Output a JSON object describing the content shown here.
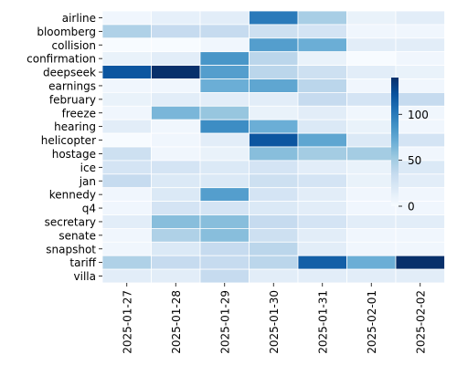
{
  "chart_data": {
    "type": "heatmap",
    "title": "",
    "xlabel": "",
    "ylabel": "",
    "columns": [
      "2025-01-27",
      "2025-01-28",
      "2025-01-29",
      "2025-01-30",
      "2025-01-31",
      "2025-02-01",
      "2025-02-02"
    ],
    "rows": [
      "airline",
      "bloomberg",
      "collision",
      "confirmation",
      "deepseek",
      "earnings",
      "february",
      "freeze",
      "hearing",
      "helicopter",
      "hostage",
      "ice",
      "jan",
      "kennedy",
      "q4",
      "secretary",
      "senate",
      "snapshot",
      "tariff",
      "villa"
    ],
    "values": [
      [
        5,
        12,
        15,
        100,
        48,
        10,
        15
      ],
      [
        45,
        35,
        35,
        30,
        25,
        5,
        5
      ],
      [
        0,
        0,
        5,
        80,
        70,
        15,
        15
      ],
      [
        10,
        15,
        85,
        40,
        10,
        0,
        5
      ],
      [
        120,
        140,
        80,
        40,
        30,
        15,
        10
      ],
      [
        5,
        5,
        70,
        75,
        40,
        5,
        5
      ],
      [
        10,
        15,
        15,
        15,
        35,
        25,
        35
      ],
      [
        5,
        65,
        55,
        10,
        15,
        5,
        5
      ],
      [
        15,
        5,
        90,
        70,
        20,
        10,
        5
      ],
      [
        0,
        5,
        15,
        120,
        75,
        20,
        25
      ],
      [
        30,
        5,
        10,
        60,
        50,
        50,
        5
      ],
      [
        25,
        25,
        20,
        25,
        15,
        10,
        20
      ],
      [
        35,
        20,
        20,
        30,
        25,
        10,
        15
      ],
      [
        5,
        20,
        80,
        25,
        15,
        5,
        5
      ],
      [
        5,
        25,
        25,
        20,
        15,
        5,
        5
      ],
      [
        15,
        60,
        60,
        35,
        25,
        15,
        15
      ],
      [
        5,
        45,
        60,
        30,
        15,
        5,
        5
      ],
      [
        5,
        20,
        35,
        40,
        15,
        5,
        5
      ],
      [
        45,
        35,
        35,
        40,
        115,
        70,
        140
      ],
      [
        15,
        15,
        35,
        15,
        15,
        15,
        15
      ]
    ],
    "colorbar": {
      "ticks": [
        0,
        50,
        100
      ],
      "range": [
        0,
        140
      ]
    }
  }
}
